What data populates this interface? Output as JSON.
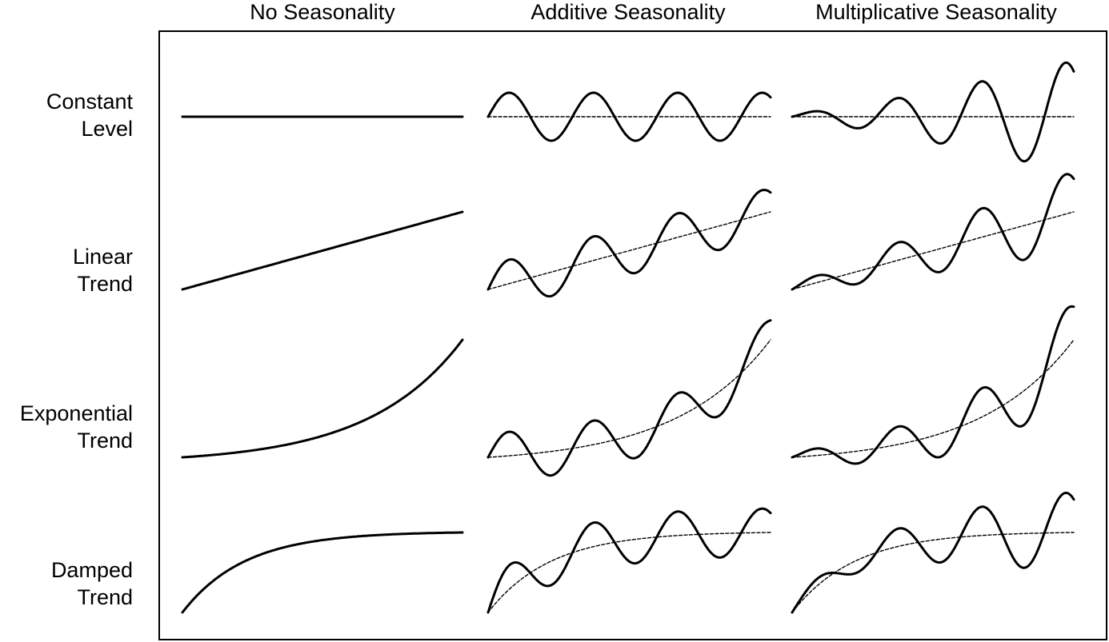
{
  "columns": [
    "No Seasonality",
    "Additive Seasonality",
    "Multiplicative Seasonality"
  ],
  "rows": [
    {
      "line1": "Constant",
      "line2": "Level",
      "trend": "constant"
    },
    {
      "line1": "Linear",
      "line2": "Trend",
      "trend": "linear"
    },
    {
      "line1": "Exponential",
      "line2": "Trend",
      "trend": "exponential"
    },
    {
      "line1": "Damped",
      "line2": "Trend",
      "trend": "damped"
    }
  ],
  "seasonality_types": [
    "none",
    "additive",
    "multiplicative"
  ],
  "colors": {
    "curve": "#000000",
    "background": "#ffffff"
  }
}
